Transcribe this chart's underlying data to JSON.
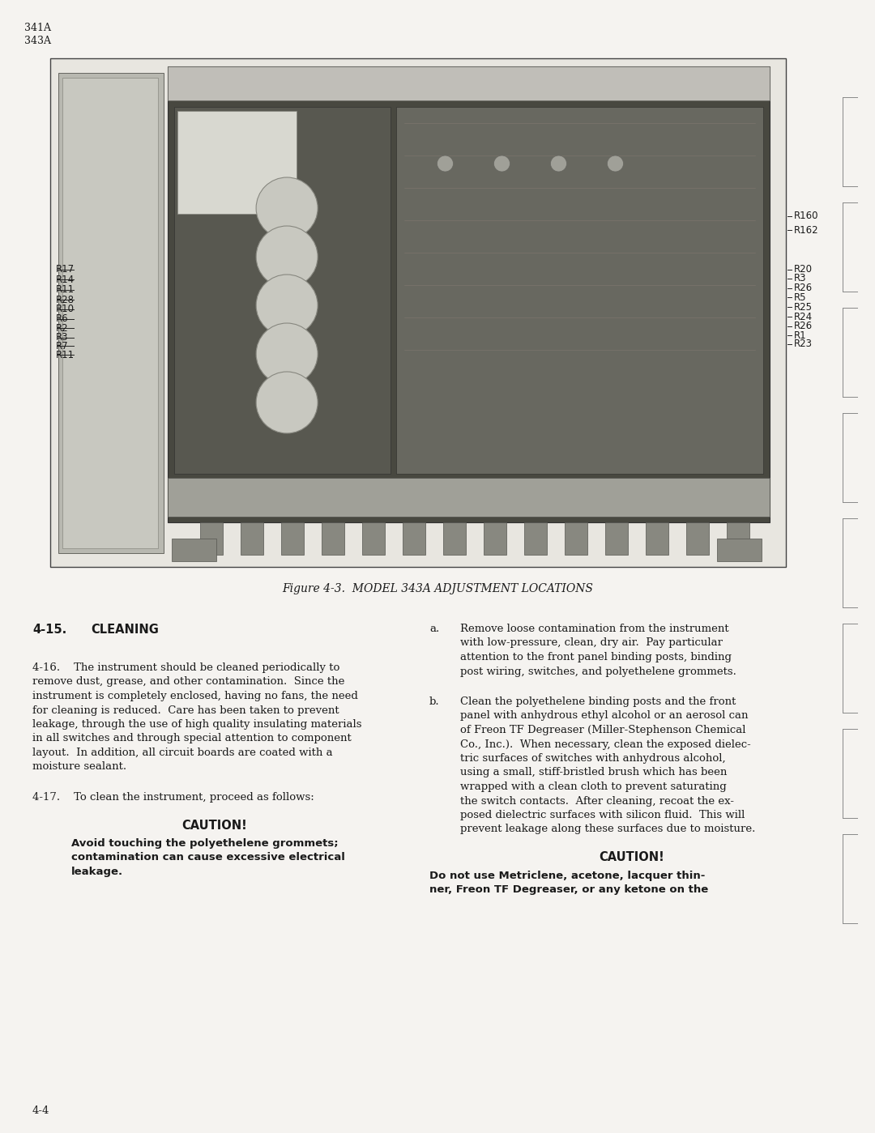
{
  "bg_color": "#f5f3f0",
  "figure_caption": "Figure 4-3.  MODEL 343A ADJUSTMENT LOCATIONS",
  "section_heading": "4-15.",
  "section_heading2": "CLEANING",
  "para_416_lines": [
    "4-16.    The instrument should be cleaned periodically to",
    "remove dust, grease, and other contamination.  Since the",
    "instrument is completely enclosed, having no fans, the need",
    "for cleaning is reduced.  Care has been taken to prevent",
    "leakage, through the use of high quality insulating materials",
    "in all switches and through special attention to component",
    "layout.  In addition, all circuit boards are coated with a",
    "moisture sealant."
  ],
  "para_417": "4-17.    To clean the instrument, proceed as follows:",
  "caution1_heading": "CAUTION!",
  "caution1_lines": [
    "Avoid touching the polyethelene grommets;",
    "contamination can cause excessive electrical",
    "leakage."
  ],
  "item_a_lines": [
    "Remove loose contamination from the instrument",
    "with low-pressure, clean, dry air.  Pay particular",
    "attention to the front panel binding posts, binding",
    "post wiring, switches, and polyethelene grommets."
  ],
  "item_b_lines": [
    "Clean the polyethelene binding posts and the front",
    "panel with anhydrous ethyl alcohol or an aerosol can",
    "of Freon TF Degreaser (Miller-Stephenson Chemical",
    "Co., Inc.).  When necessary, clean the exposed dielec-",
    "tric surfaces of switches with anhydrous alcohol,",
    "using a small, stiff-bristled brush which has been",
    "wrapped with a clean cloth to prevent saturating",
    "the switch contacts.  After cleaning, recoat the ex-",
    "posed dielectric surfaces with silicon fluid.  This will",
    "prevent leakage along these surfaces due to moisture."
  ],
  "caution2_heading": "CAUTION!",
  "caution2_lines": [
    "Do not use Metriclene, acetone, lacquer thin-",
    "ner, Freon TF Degreaser, or any ketone on the"
  ],
  "page_number": "4-4",
  "left_labels": [
    [
      "R17",
      0.415
    ],
    [
      "R14",
      0.435
    ],
    [
      "R11",
      0.455
    ],
    [
      "R28",
      0.475
    ],
    [
      "R10",
      0.493
    ],
    [
      "R6",
      0.512
    ],
    [
      "R2",
      0.531
    ],
    [
      "R3",
      0.549
    ],
    [
      "R7",
      0.566
    ],
    [
      "R11",
      0.583
    ]
  ],
  "right_labels": [
    [
      "R160",
      0.31
    ],
    [
      "R162",
      0.338
    ],
    [
      "R20",
      0.415
    ],
    [
      "R3",
      0.433
    ],
    [
      "R26",
      0.452
    ],
    [
      "R5",
      0.47
    ],
    [
      "R25",
      0.489
    ],
    [
      "R24",
      0.508
    ],
    [
      "R26",
      0.527
    ],
    [
      "R1",
      0.545
    ],
    [
      "R23",
      0.562
    ]
  ],
  "text_color": "#1a1a1a",
  "border_color": "#444444",
  "photo_dark": "#484840",
  "photo_mid": "#686860",
  "photo_light": "#909088",
  "photo_lighter": "#a8a8a0"
}
